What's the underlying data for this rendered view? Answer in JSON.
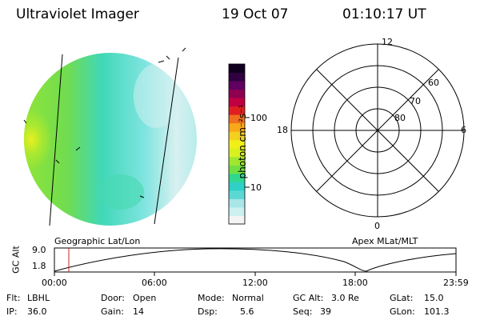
{
  "header": {
    "instrument": "Ultraviolet Imager",
    "date": "19 Oct 07",
    "time": "01:10:17 UT"
  },
  "image_panel": {
    "label": "Geographic Lat/Lon"
  },
  "colorbar": {
    "unit_label": "photon cm⁻²s⁻¹",
    "ticks": [
      "100",
      "10"
    ],
    "scale": "log",
    "colors": [
      "#f4f4f4",
      "#ccf0f0",
      "#a8e6e8",
      "#5cd8d4",
      "#2ed0c8",
      "#30d890",
      "#70e040",
      "#a0e830",
      "#d8f020",
      "#f0f018",
      "#f4d020",
      "#f8a818",
      "#f07020",
      "#e02020",
      "#c00040",
      "#900050",
      "#600060",
      "#300040",
      "#100020"
    ]
  },
  "polar_plot": {
    "label": "Apex MLat/MLT",
    "mlt_labels": {
      "top": "12",
      "left": "18",
      "right": "6",
      "bottom": "0"
    },
    "mlat_labels": [
      "60",
      "70",
      "80"
    ]
  },
  "altitude_plot": {
    "ylabel": "GC Alt",
    "ytick_top": "9.0",
    "ytick_bottom": "1.8",
    "xticks": [
      "00:00",
      "06:00",
      "12:00",
      "18:00",
      "23:59"
    ],
    "current_time_color": "#cc2020"
  },
  "info": {
    "flt": {
      "label": "Flt:",
      "value": "LBHL"
    },
    "ip": {
      "label": "IP:",
      "value": "36.0"
    },
    "door": {
      "label": "Door:",
      "value": "Open"
    },
    "gain": {
      "label": "Gain:",
      "value": "14"
    },
    "mode": {
      "label": "Mode:",
      "value": "Normal"
    },
    "dsp": {
      "label": "Dsp:",
      "value": "5.6"
    },
    "gcalt": {
      "label": "GC Alt:",
      "value": "3.0 Re"
    },
    "seq": {
      "label": "Seq:",
      "value": "39"
    },
    "glat": {
      "label": "GLat:",
      "value": "15.0"
    },
    "glon": {
      "label": "GLon:",
      "value": "101.3"
    }
  }
}
